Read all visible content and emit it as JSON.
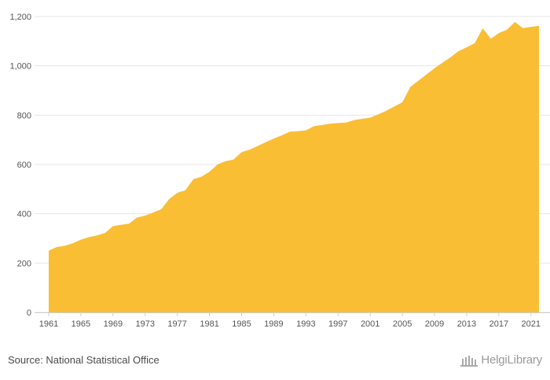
{
  "chart_data": {
    "type": "area",
    "title": "",
    "xlabel": "",
    "ylabel": "",
    "ylim": [
      0,
      1200
    ],
    "y_ticks": [
      "0",
      "200",
      "400",
      "600",
      "800",
      "1,000",
      "1,200"
    ],
    "x_ticks": [
      "1961",
      "1965",
      "1969",
      "1973",
      "1977",
      "1981",
      "1985",
      "1989",
      "1993",
      "1997",
      "2001",
      "2005",
      "2009",
      "2013",
      "2017",
      "2021"
    ],
    "grid": true,
    "color": "#F9BE33",
    "x": [
      1961,
      1962,
      1963,
      1964,
      1965,
      1966,
      1967,
      1968,
      1969,
      1970,
      1971,
      1972,
      1973,
      1974,
      1975,
      1976,
      1977,
      1978,
      1979,
      1980,
      1981,
      1982,
      1983,
      1984,
      1985,
      1986,
      1987,
      1988,
      1989,
      1990,
      1991,
      1992,
      1993,
      1994,
      1995,
      1996,
      1997,
      1998,
      1999,
      2000,
      2001,
      2002,
      2003,
      2004,
      2005,
      2006,
      2007,
      2008,
      2009,
      2010,
      2011,
      2012,
      2013,
      2014,
      2015,
      2016,
      2017,
      2018,
      2019,
      2020,
      2021,
      2022
    ],
    "values": [
      250,
      265,
      270,
      280,
      295,
      305,
      312,
      322,
      350,
      355,
      360,
      385,
      392,
      405,
      418,
      460,
      485,
      495,
      540,
      550,
      570,
      600,
      613,
      620,
      650,
      660,
      675,
      690,
      705,
      718,
      733,
      735,
      738,
      755,
      760,
      765,
      768,
      770,
      780,
      785,
      790,
      803,
      818,
      835,
      852,
      915,
      940,
      965,
      990,
      1013,
      1035,
      1060,
      1075,
      1092,
      1152,
      1110,
      1133,
      1146,
      1178,
      1153,
      1158,
      1162
    ]
  },
  "footer": {
    "source": "Source: National Statistical Office",
    "brand": "HelgiLibrary",
    "brand_icon": "library-building-icon"
  }
}
